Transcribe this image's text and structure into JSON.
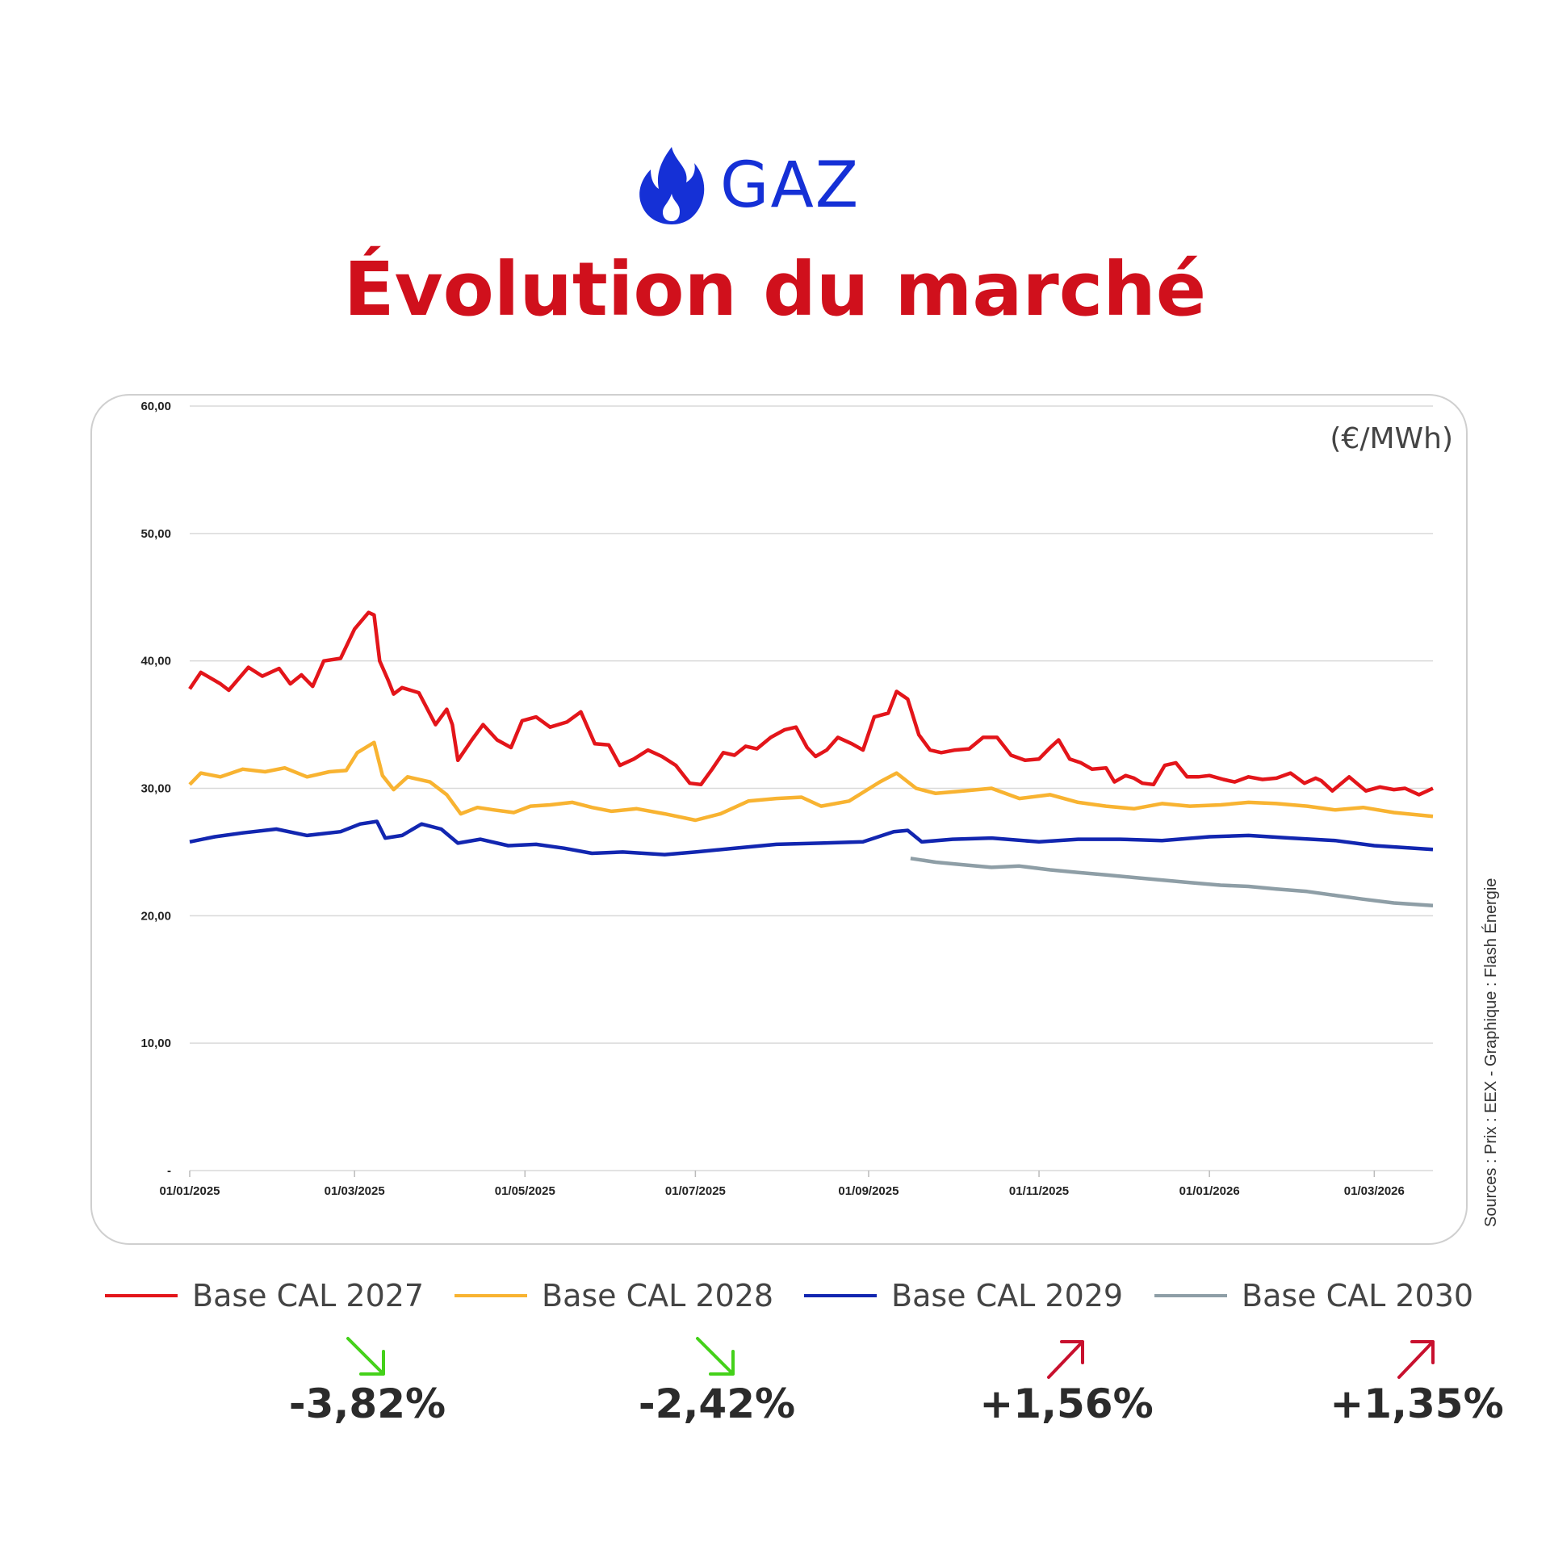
{
  "header": {
    "energy": "GAZ",
    "title": "Évolution du marché"
  },
  "colors": {
    "accent_blue": "#1530d6",
    "title_red": "#d0101c",
    "up": "#c8102e",
    "down": "#44d11a"
  },
  "chart_data": {
    "type": "line",
    "unit": "(€/MWh)",
    "source": "Sources : Prix : EEX - Graphique : Flash Énergie",
    "ylim": [
      0,
      60
    ],
    "yticks": [
      0,
      10,
      20,
      30,
      40,
      50,
      60
    ],
    "ytick_labels": [
      "-",
      "10,00",
      "20,00",
      "30,00",
      "40,00",
      "50,00",
      "60,00"
    ],
    "xlim": [
      "2025-01-01",
      "2026-03-22"
    ],
    "xticks": [
      "2025-01-01",
      "2025-03-01",
      "2025-05-01",
      "2025-07-01",
      "2025-09-01",
      "2025-11-01",
      "2026-01-01",
      "2026-03-01"
    ],
    "xtick_labels": [
      "01/01/2025",
      "01/03/2025",
      "01/05/2025",
      "01/07/2025",
      "01/09/2025",
      "01/11/2025",
      "01/01/2026",
      "01/03/2026"
    ],
    "grid": true,
    "legend": "bottom",
    "series": [
      {
        "name": "Base CAL 2027",
        "color": "#e3151a",
        "change": "-3,82%",
        "direction": "down",
        "points": [
          [
            "2025-01-01",
            37.8
          ],
          [
            "2025-01-05",
            39.1
          ],
          [
            "2025-01-12",
            38.2
          ],
          [
            "2025-01-15",
            37.7
          ],
          [
            "2025-01-22",
            39.5
          ],
          [
            "2025-01-27",
            38.8
          ],
          [
            "2025-02-02",
            39.4
          ],
          [
            "2025-02-06",
            38.2
          ],
          [
            "2025-02-10",
            38.9
          ],
          [
            "2025-02-14",
            38.0
          ],
          [
            "2025-02-18",
            40.0
          ],
          [
            "2025-02-24",
            40.2
          ],
          [
            "2025-03-01",
            42.5
          ],
          [
            "2025-03-06",
            43.8
          ],
          [
            "2025-03-08",
            43.6
          ],
          [
            "2025-03-10",
            40.0
          ],
          [
            "2025-03-13",
            38.5
          ],
          [
            "2025-03-15",
            37.4
          ],
          [
            "2025-03-18",
            37.9
          ],
          [
            "2025-03-24",
            37.5
          ],
          [
            "2025-03-30",
            35.0
          ],
          [
            "2025-04-03",
            36.2
          ],
          [
            "2025-04-05",
            35.0
          ],
          [
            "2025-04-07",
            32.2
          ],
          [
            "2025-04-12",
            33.8
          ],
          [
            "2025-04-16",
            35.0
          ],
          [
            "2025-04-21",
            33.8
          ],
          [
            "2025-04-26",
            33.2
          ],
          [
            "2025-04-30",
            35.3
          ],
          [
            "2025-05-05",
            35.6
          ],
          [
            "2025-05-10",
            34.8
          ],
          [
            "2025-05-16",
            35.2
          ],
          [
            "2025-05-21",
            36.0
          ],
          [
            "2025-05-26",
            33.5
          ],
          [
            "2025-05-31",
            33.4
          ],
          [
            "2025-06-04",
            31.8
          ],
          [
            "2025-06-09",
            32.3
          ],
          [
            "2025-06-14",
            33.0
          ],
          [
            "2025-06-19",
            32.5
          ],
          [
            "2025-06-24",
            31.8
          ],
          [
            "2025-06-29",
            30.4
          ],
          [
            "2025-07-03",
            30.3
          ],
          [
            "2025-07-07",
            31.5
          ],
          [
            "2025-07-11",
            32.8
          ],
          [
            "2025-07-15",
            32.6
          ],
          [
            "2025-07-19",
            33.3
          ],
          [
            "2025-07-23",
            33.1
          ],
          [
            "2025-07-28",
            34.0
          ],
          [
            "2025-08-02",
            34.6
          ],
          [
            "2025-08-06",
            34.8
          ],
          [
            "2025-08-10",
            33.2
          ],
          [
            "2025-08-13",
            32.5
          ],
          [
            "2025-08-17",
            33.0
          ],
          [
            "2025-08-21",
            34.0
          ],
          [
            "2025-08-26",
            33.5
          ],
          [
            "2025-08-30",
            33.0
          ],
          [
            "2025-09-03",
            35.6
          ],
          [
            "2025-09-08",
            35.9
          ],
          [
            "2025-09-11",
            37.6
          ],
          [
            "2025-09-15",
            37.0
          ],
          [
            "2025-09-19",
            34.2
          ],
          [
            "2025-09-23",
            33.0
          ],
          [
            "2025-09-27",
            32.8
          ],
          [
            "2025-10-02",
            33.0
          ],
          [
            "2025-10-07",
            33.1
          ],
          [
            "2025-10-12",
            34.0
          ],
          [
            "2025-10-17",
            34.0
          ],
          [
            "2025-10-22",
            32.6
          ],
          [
            "2025-10-27",
            32.2
          ],
          [
            "2025-11-01",
            32.3
          ],
          [
            "2025-11-05",
            33.2
          ],
          [
            "2025-11-08",
            33.8
          ],
          [
            "2025-11-12",
            32.3
          ],
          [
            "2025-11-16",
            32.0
          ],
          [
            "2025-11-20",
            31.5
          ],
          [
            "2025-11-25",
            31.6
          ],
          [
            "2025-11-28",
            30.5
          ],
          [
            "2025-12-02",
            31.0
          ],
          [
            "2025-12-05",
            30.8
          ],
          [
            "2025-12-08",
            30.4
          ],
          [
            "2025-12-12",
            30.3
          ],
          [
            "2025-12-16",
            31.8
          ],
          [
            "2025-12-20",
            32.0
          ],
          [
            "2025-12-24",
            30.9
          ],
          [
            "2025-12-28",
            30.9
          ],
          [
            "2026-01-01",
            31.0
          ],
          [
            "2026-01-06",
            30.7
          ],
          [
            "2026-01-10",
            30.5
          ],
          [
            "2026-01-15",
            30.9
          ],
          [
            "2026-01-20",
            30.7
          ],
          [
            "2026-01-25",
            30.8
          ],
          [
            "2026-01-30",
            31.2
          ],
          [
            "2026-02-04",
            30.4
          ],
          [
            "2026-02-08",
            30.8
          ],
          [
            "2026-02-10",
            30.6
          ],
          [
            "2026-02-14",
            29.8
          ],
          [
            "2026-02-20",
            30.9
          ],
          [
            "2026-02-26",
            29.8
          ],
          [
            "2026-03-03",
            30.1
          ],
          [
            "2026-03-08",
            29.9
          ],
          [
            "2026-03-12",
            30.0
          ],
          [
            "2026-03-17",
            29.5
          ],
          [
            "2026-03-22",
            30.0
          ]
        ]
      },
      {
        "name": "Base CAL 2028",
        "color": "#f8b331",
        "change": "-2,42%",
        "direction": "down",
        "points": [
          [
            "2025-01-01",
            30.3
          ],
          [
            "2025-01-05",
            31.2
          ],
          [
            "2025-01-12",
            30.9
          ],
          [
            "2025-01-20",
            31.5
          ],
          [
            "2025-01-28",
            31.3
          ],
          [
            "2025-02-04",
            31.6
          ],
          [
            "2025-02-12",
            30.9
          ],
          [
            "2025-02-20",
            31.3
          ],
          [
            "2025-02-26",
            31.4
          ],
          [
            "2025-03-02",
            32.8
          ],
          [
            "2025-03-08",
            33.6
          ],
          [
            "2025-03-11",
            31.0
          ],
          [
            "2025-03-15",
            29.9
          ],
          [
            "2025-03-20",
            30.9
          ],
          [
            "2025-03-28",
            30.5
          ],
          [
            "2025-04-03",
            29.5
          ],
          [
            "2025-04-08",
            28.0
          ],
          [
            "2025-04-14",
            28.5
          ],
          [
            "2025-04-20",
            28.3
          ],
          [
            "2025-04-27",
            28.1
          ],
          [
            "2025-05-03",
            28.6
          ],
          [
            "2025-05-10",
            28.7
          ],
          [
            "2025-05-18",
            28.9
          ],
          [
            "2025-05-25",
            28.5
          ],
          [
            "2025-06-01",
            28.2
          ],
          [
            "2025-06-10",
            28.4
          ],
          [
            "2025-06-20",
            28.0
          ],
          [
            "2025-07-01",
            27.5
          ],
          [
            "2025-07-10",
            28.0
          ],
          [
            "2025-07-20",
            29.0
          ],
          [
            "2025-07-30",
            29.2
          ],
          [
            "2025-08-08",
            29.3
          ],
          [
            "2025-08-15",
            28.6
          ],
          [
            "2025-08-25",
            29.0
          ],
          [
            "2025-09-05",
            30.5
          ],
          [
            "2025-09-11",
            31.2
          ],
          [
            "2025-09-18",
            30.0
          ],
          [
            "2025-09-25",
            29.6
          ],
          [
            "2025-10-05",
            29.8
          ],
          [
            "2025-10-15",
            30.0
          ],
          [
            "2025-10-25",
            29.2
          ],
          [
            "2025-11-05",
            29.5
          ],
          [
            "2025-11-15",
            28.9
          ],
          [
            "2025-11-25",
            28.6
          ],
          [
            "2025-12-05",
            28.4
          ],
          [
            "2025-12-15",
            28.8
          ],
          [
            "2025-12-25",
            28.6
          ],
          [
            "2026-01-05",
            28.7
          ],
          [
            "2026-01-15",
            28.9
          ],
          [
            "2026-01-25",
            28.8
          ],
          [
            "2026-02-05",
            28.6
          ],
          [
            "2026-02-15",
            28.3
          ],
          [
            "2026-02-25",
            28.5
          ],
          [
            "2026-03-08",
            28.1
          ],
          [
            "2026-03-22",
            27.8
          ]
        ]
      },
      {
        "name": "Base CAL 2029",
        "color": "#1226b0",
        "change": "+1,56%",
        "direction": "up",
        "points": [
          [
            "2025-01-01",
            25.8
          ],
          [
            "2025-01-10",
            26.2
          ],
          [
            "2025-01-20",
            26.5
          ],
          [
            "2025-02-01",
            26.8
          ],
          [
            "2025-02-12",
            26.3
          ],
          [
            "2025-02-24",
            26.6
          ],
          [
            "2025-03-03",
            27.2
          ],
          [
            "2025-03-09",
            27.4
          ],
          [
            "2025-03-12",
            26.1
          ],
          [
            "2025-03-18",
            26.3
          ],
          [
            "2025-03-25",
            27.2
          ],
          [
            "2025-04-01",
            26.8
          ],
          [
            "2025-04-07",
            25.7
          ],
          [
            "2025-04-15",
            26.0
          ],
          [
            "2025-04-25",
            25.5
          ],
          [
            "2025-05-05",
            25.6
          ],
          [
            "2025-05-15",
            25.3
          ],
          [
            "2025-05-25",
            24.9
          ],
          [
            "2025-06-05",
            25.0
          ],
          [
            "2025-06-20",
            24.8
          ],
          [
            "2025-07-01",
            25.0
          ],
          [
            "2025-07-15",
            25.3
          ],
          [
            "2025-07-30",
            25.6
          ],
          [
            "2025-08-15",
            25.7
          ],
          [
            "2025-08-30",
            25.8
          ],
          [
            "2025-09-10",
            26.6
          ],
          [
            "2025-09-15",
            26.7
          ],
          [
            "2025-09-20",
            25.8
          ],
          [
            "2025-10-01",
            26.0
          ],
          [
            "2025-10-15",
            26.1
          ],
          [
            "2025-11-01",
            25.8
          ],
          [
            "2025-11-15",
            26.0
          ],
          [
            "2025-11-30",
            26.0
          ],
          [
            "2025-12-15",
            25.9
          ],
          [
            "2026-01-01",
            26.2
          ],
          [
            "2026-01-15",
            26.3
          ],
          [
            "2026-01-30",
            26.1
          ],
          [
            "2026-02-15",
            25.9
          ],
          [
            "2026-03-01",
            25.5
          ],
          [
            "2026-03-22",
            25.2
          ]
        ]
      },
      {
        "name": "Base CAL 2030",
        "color": "#8e9ea6",
        "change": "+1,35%",
        "direction": "up",
        "points": [
          [
            "2025-09-16",
            24.5
          ],
          [
            "2025-09-25",
            24.2
          ],
          [
            "2025-10-05",
            24.0
          ],
          [
            "2025-10-15",
            23.8
          ],
          [
            "2025-10-25",
            23.9
          ],
          [
            "2025-11-05",
            23.6
          ],
          [
            "2025-11-15",
            23.4
          ],
          [
            "2025-11-25",
            23.2
          ],
          [
            "2025-12-05",
            23.0
          ],
          [
            "2025-12-15",
            22.8
          ],
          [
            "2025-12-25",
            22.6
          ],
          [
            "2026-01-05",
            22.4
          ],
          [
            "2026-01-15",
            22.3
          ],
          [
            "2026-01-25",
            22.1
          ],
          [
            "2026-02-05",
            21.9
          ],
          [
            "2026-02-15",
            21.6
          ],
          [
            "2026-02-25",
            21.3
          ],
          [
            "2026-03-08",
            21.0
          ],
          [
            "2026-03-22",
            20.8
          ]
        ]
      }
    ]
  }
}
